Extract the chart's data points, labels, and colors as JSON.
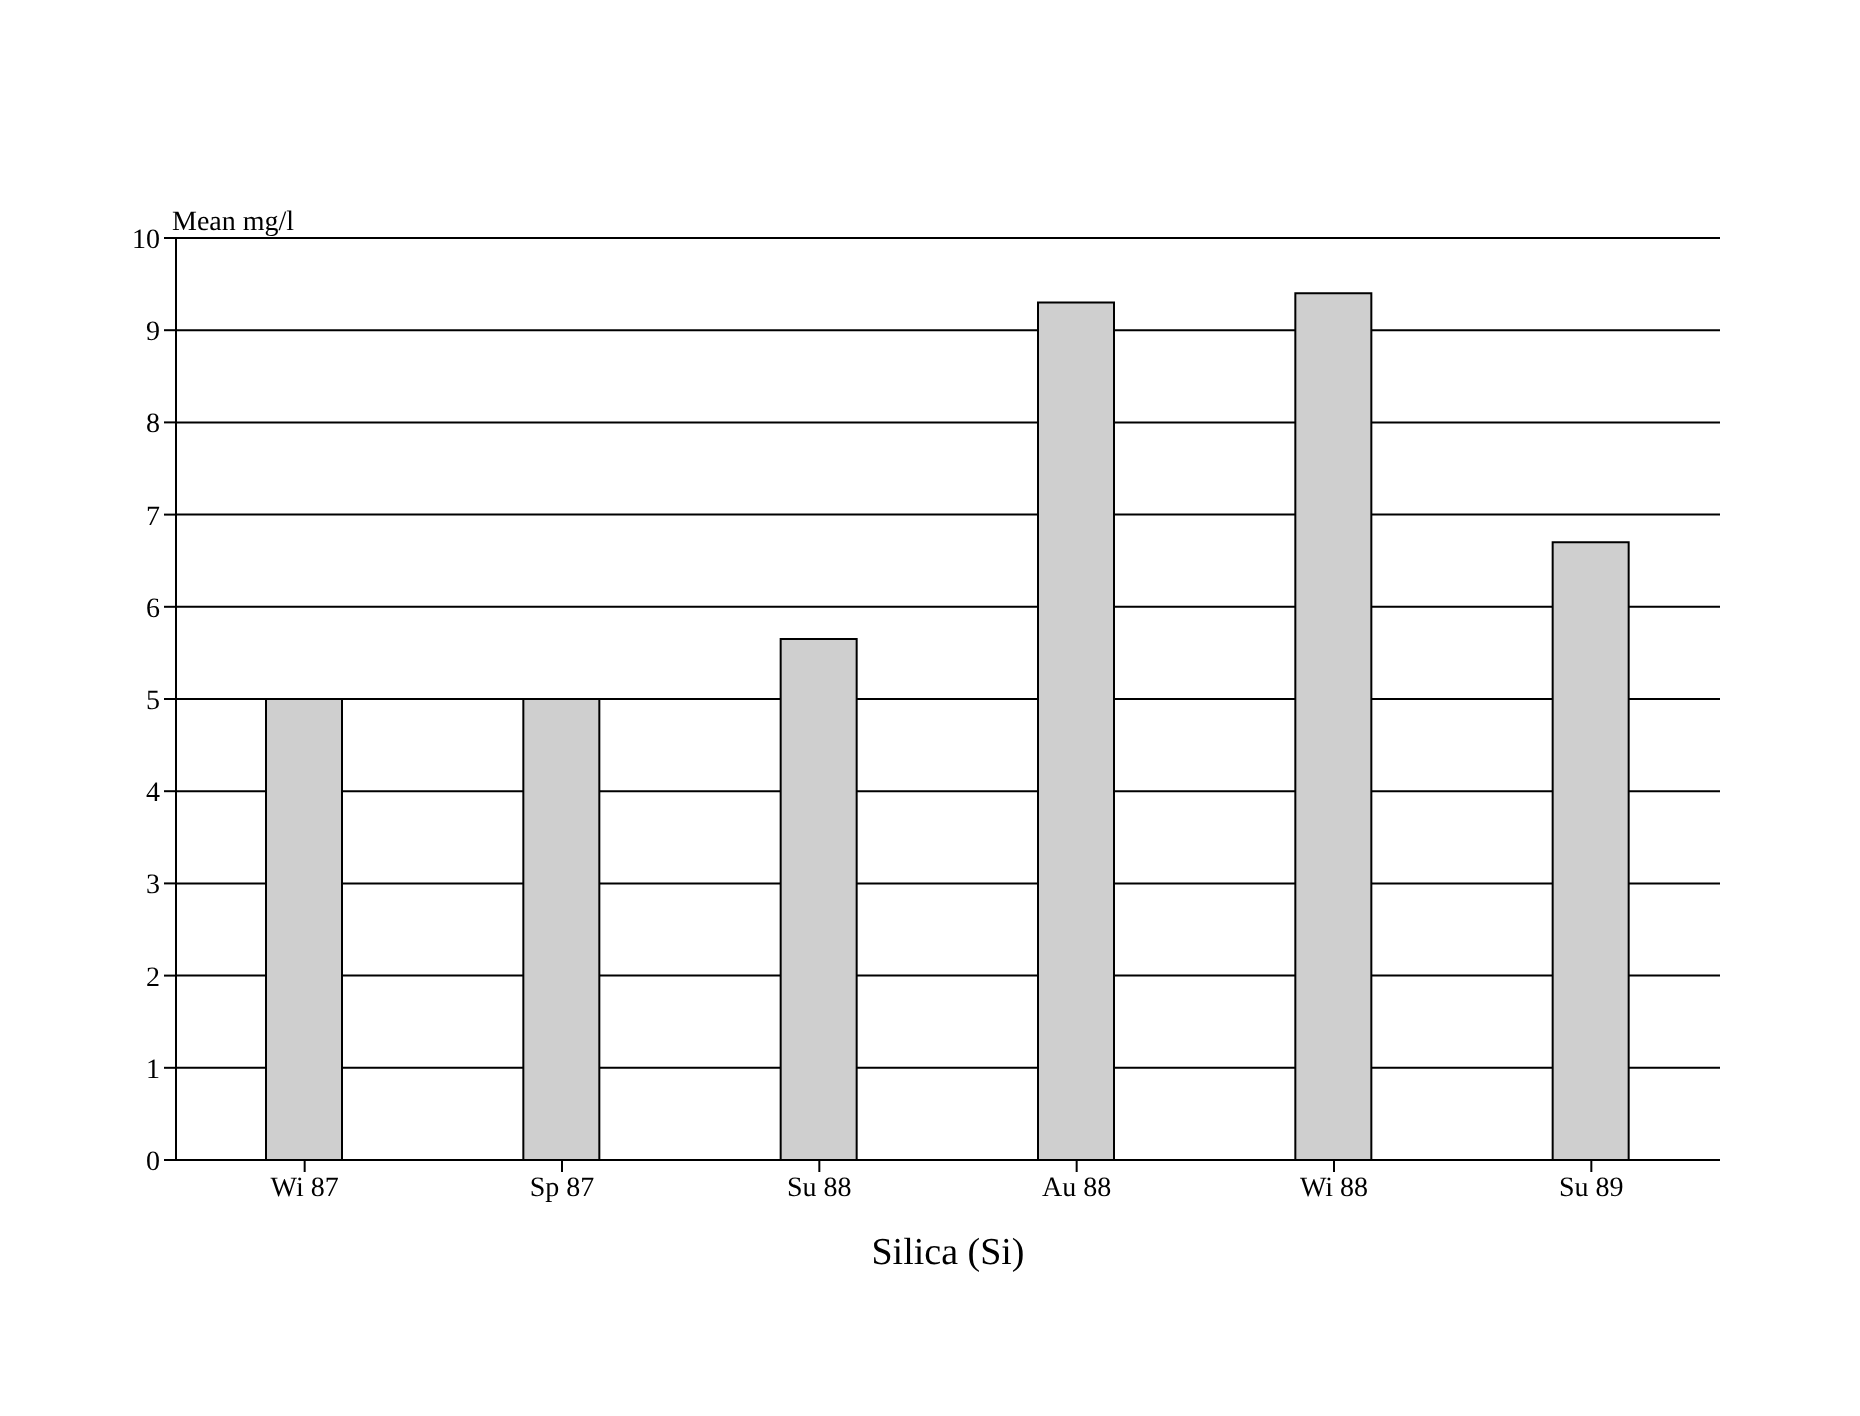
{
  "chart_data": {
    "type": "bar",
    "xlabel": "Silica (Si)",
    "ylabel": "Mean mg/l",
    "categories": [
      "Wi 87",
      "Sp 87",
      "Su 88",
      "Au 88",
      "Wi 88",
      "Su 89"
    ],
    "values": [
      5.0,
      5.0,
      5.65,
      9.3,
      9.4,
      6.7
    ],
    "color": "#cfcfcf",
    "ylim": [
      0,
      10
    ],
    "yticks": [
      0,
      1,
      2,
      3,
      4,
      5,
      6,
      7,
      8,
      9,
      10
    ],
    "grid": "y",
    "legend": false
  }
}
